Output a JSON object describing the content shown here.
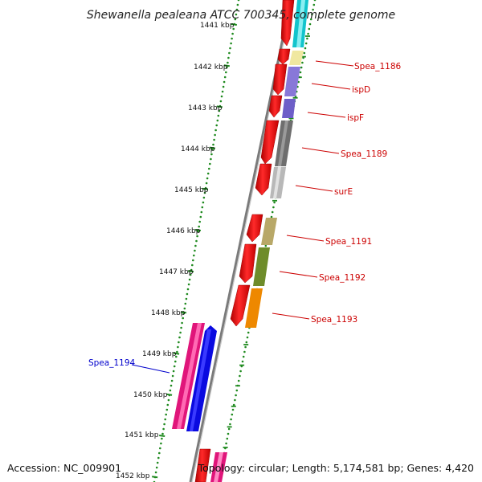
{
  "title": "Shewanella pealeana ATCC 700345, complete genome",
  "footer": {
    "accession": "Accession: NC_009901",
    "summary": "Topology: circular; Length: 5,174,581 bp; Genes: 4,420"
  },
  "colors": {
    "backbone": "#7a7a7a",
    "dots": "#1f8a1f",
    "tick": "#1f8a1f",
    "label_red": "#cc0000",
    "label_blue": "#0000cc"
  },
  "ticks": [
    "1441 kbp",
    "1442 kbp",
    "1443 kbp",
    "1444 kbp",
    "1445 kbp",
    "1446 kbp",
    "1447 kbp",
    "1448 kbp",
    "1449 kbp",
    "1450 kbp",
    "1451 kbp",
    "1452 kbp"
  ],
  "gene_labels": [
    {
      "text": "Spea_1186",
      "color": "#cc0000"
    },
    {
      "text": "ispD",
      "color": "#cc0000"
    },
    {
      "text": "ispF",
      "color": "#cc0000"
    },
    {
      "text": "Spea_1189",
      "color": "#cc0000"
    },
    {
      "text": "surE",
      "color": "#cc0000"
    },
    {
      "text": "Spea_1191",
      "color": "#cc0000"
    },
    {
      "text": "Spea_1192",
      "color": "#cc0000"
    },
    {
      "text": "Spea_1193",
      "color": "#cc0000"
    },
    {
      "text": "Spea_1194",
      "color": "#0000cc"
    }
  ]
}
